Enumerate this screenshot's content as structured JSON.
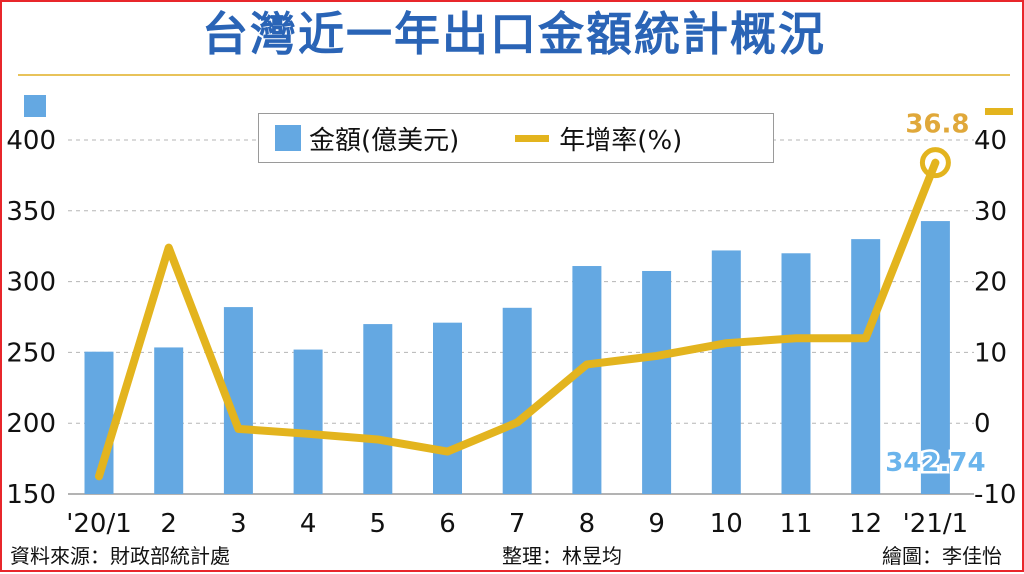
{
  "title": "台灣近一年出口金額統計概況",
  "legend": {
    "bar_label": "金額(億美元)",
    "line_label": "年增率(%)"
  },
  "footer": {
    "source": "資料來源：財政部統計處",
    "editor": "整理：林昱均",
    "artist": "繪圖：李佳怡"
  },
  "chart_data": {
    "type": "bar",
    "categories": [
      "'20/1",
      "2",
      "3",
      "4",
      "5",
      "6",
      "7",
      "8",
      "9",
      "10",
      "11",
      "12",
      "'21/1"
    ],
    "series": [
      {
        "name": "金額(億美元)",
        "type": "bar",
        "axis": "left",
        "color": "#64a8e2",
        "values": [
          250.5,
          253.5,
          282.0,
          252.0,
          270.0,
          271.0,
          281.5,
          311.0,
          307.5,
          322.0,
          320.0,
          330.0,
          342.74
        ]
      },
      {
        "name": "年增率(%)",
        "type": "line",
        "axis": "right",
        "color": "#e3b41e",
        "values": [
          -7.5,
          24.8,
          -0.8,
          -1.5,
          -2.3,
          -4.0,
          0.1,
          8.3,
          9.5,
          11.3,
          12.0,
          12.0,
          36.8
        ]
      }
    ],
    "left_axis": {
      "ylim": [
        150,
        400
      ],
      "ticks": [
        150,
        200,
        250,
        300,
        350,
        400
      ]
    },
    "right_axis": {
      "ylim": [
        -10,
        40
      ],
      "ticks": [
        -10,
        0,
        10,
        20,
        30,
        40
      ]
    },
    "annotations": {
      "last_bar_value": "342.74",
      "last_line_value": "36.8"
    },
    "grid": true,
    "legend_position": "top-center"
  }
}
